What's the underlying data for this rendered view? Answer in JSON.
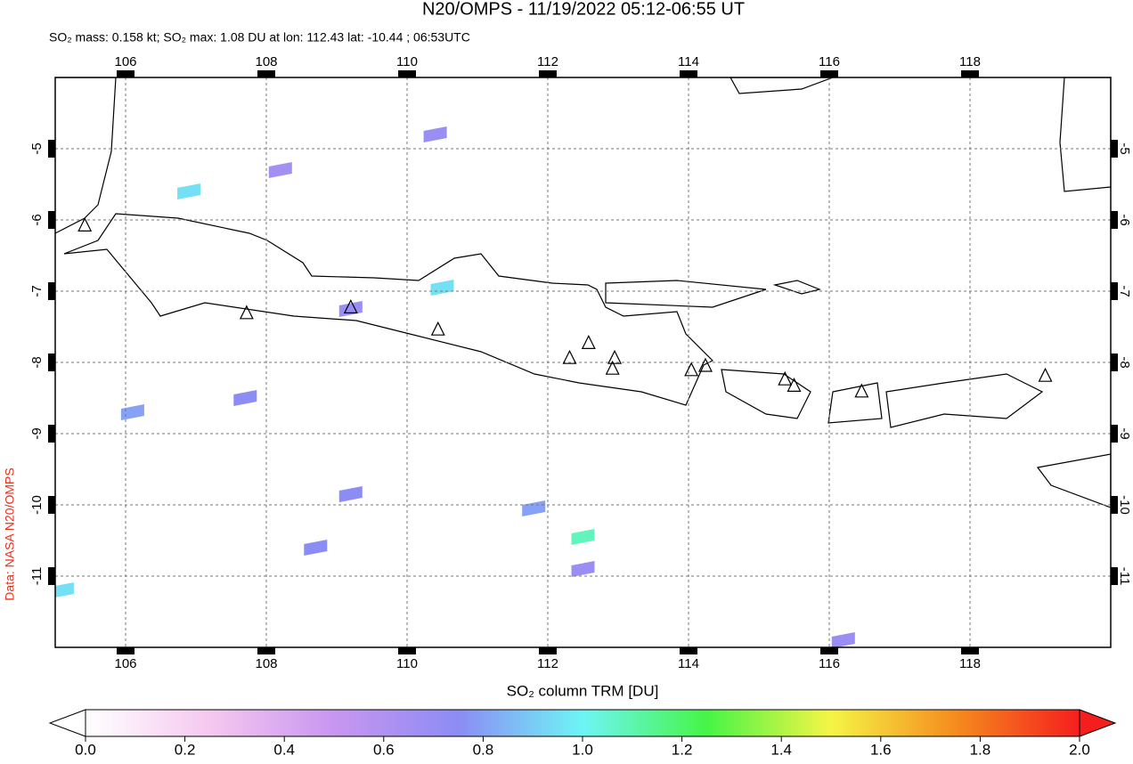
{
  "chart_data": {
    "type": "map",
    "title": "N20/OMPS - 11/19/2022 05:12-06:55 UT",
    "subtitle": "SO₂ mass: 0.158 kt; SO₂ max: 1.08 DU at lon: 112.43 lat: -10.44 ; 06:53UTC",
    "side_label": "Data: NASA N20/OMPS",
    "xlim": [
      105.0,
      120.0
    ],
    "ylim": [
      -12.0,
      -4.0
    ],
    "xticks": [
      106,
      108,
      110,
      112,
      114,
      116,
      118
    ],
    "yticks": [
      -5,
      -6,
      -7,
      -8,
      -9,
      -10,
      -11
    ],
    "grid": true,
    "pixels": {
      "lon": [
        110.5,
        112.5,
        111.8,
        106.9,
        105.1,
        110.4,
        108.2,
        112.5,
        108.7,
        109.2,
        106.1,
        107.7,
        109.2,
        116.2
      ],
      "lat": [
        -6.95,
        -10.45,
        -10.05,
        -5.6,
        -11.2,
        -4.8,
        -5.3,
        -10.9,
        -10.6,
        -9.85,
        -8.7,
        -8.5,
        -7.25,
        -11.9
      ],
      "values": [
        0.95,
        1.08,
        0.8,
        0.95,
        0.95,
        0.7,
        0.65,
        0.7,
        0.75,
        0.75,
        0.8,
        0.75,
        0.7,
        0.7
      ]
    },
    "volcanoes": {
      "lon": [
        105.42,
        107.72,
        109.2,
        110.44,
        112.31,
        112.58,
        112.95,
        112.92,
        114.04,
        114.24,
        115.37,
        115.5,
        116.46,
        119.07
      ],
      "lat": [
        -6.08,
        -7.31,
        -7.23,
        -7.54,
        -7.94,
        -7.73,
        -7.94,
        -8.09,
        -8.11,
        -8.05,
        -8.24,
        -8.33,
        -8.41,
        -8.19
      ]
    },
    "colorbar": {
      "label": "SO₂ column TRM [DU]",
      "lim": [
        0.0,
        2.0
      ],
      "ticks": [
        {
          "value": 0,
          "label": "0.0"
        },
        {
          "value": 0.2,
          "label": "0.2"
        },
        {
          "value": 0.4,
          "label": "0.4"
        },
        {
          "value": 0.6,
          "label": "0.6"
        },
        {
          "value": 0.8,
          "label": "0.8"
        },
        {
          "value": 1.0,
          "label": "1.0"
        },
        {
          "value": 1.2,
          "label": "1.2"
        },
        {
          "value": 1.4,
          "label": "1.4"
        },
        {
          "value": 1.6,
          "label": "1.6"
        },
        {
          "value": 1.8,
          "label": "1.8"
        },
        {
          "value": 2.0,
          "label": "2.0"
        }
      ],
      "colors": [
        "#ffffff",
        "#f5c8f0",
        "#c896f0",
        "#8c8cf5",
        "#6ef5f5",
        "#46f546",
        "#f5f546",
        "#f58c1e",
        "#f51e1e"
      ]
    }
  }
}
